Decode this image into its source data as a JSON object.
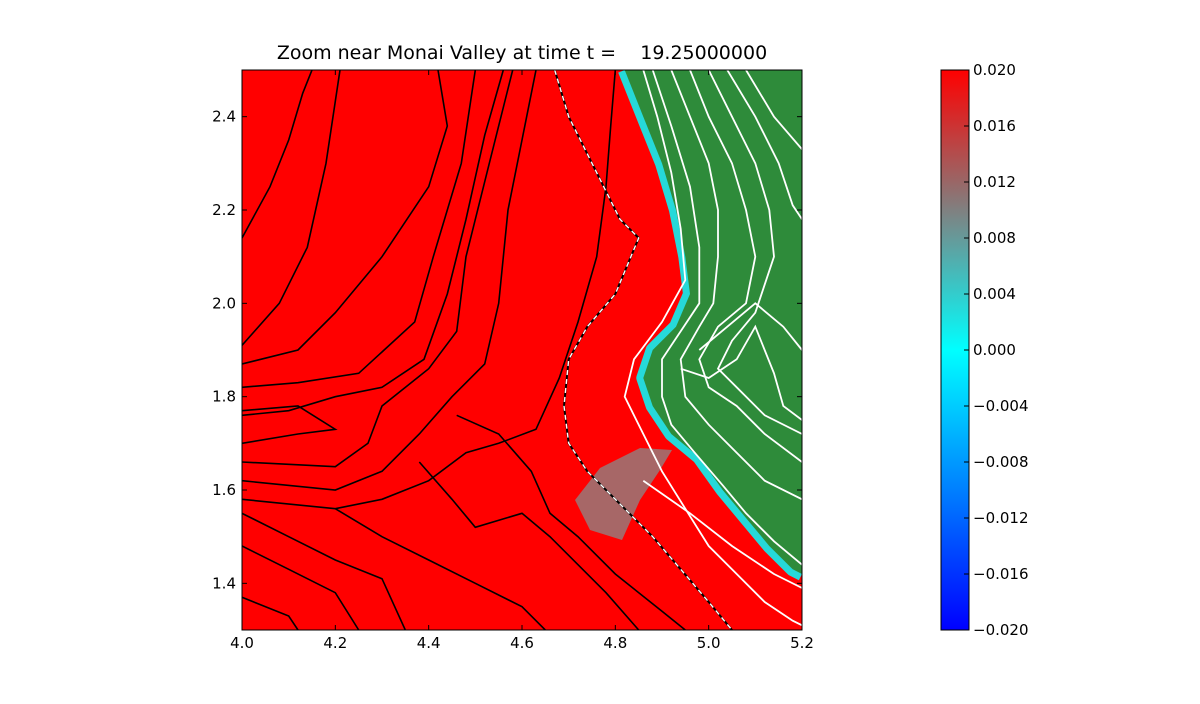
{
  "chart_data": [
    {
      "type": "heatmap",
      "title": "Zoom near Monai Valley at time t =    19.25000000",
      "xlabel": "",
      "ylabel": "",
      "xlim": [
        4.0,
        5.2
      ],
      "ylim": [
        1.3,
        2.5
      ],
      "x_ticks": [
        "4.0",
        "4.2",
        "4.4",
        "4.6",
        "4.8",
        "5.0",
        "5.2"
      ],
      "x_tick_values": [
        4.0,
        4.2,
        4.4,
        4.6,
        4.8,
        5.0,
        5.2
      ],
      "y_ticks": [
        "1.4",
        "1.6",
        "1.8",
        "2.0",
        "2.2",
        "2.4"
      ],
      "y_tick_values": [
        1.4,
        1.6,
        1.8,
        2.0,
        2.2,
        2.4
      ],
      "regions": [
        {
          "name": "water",
          "value": 0.02,
          "color": "#ff0000"
        },
        {
          "name": "land",
          "color": "#2e8b3a"
        },
        {
          "name": "shoreline-band",
          "value": 0.0,
          "color": "#00ffff"
        }
      ],
      "shoreline": [
        [
          4.82,
          2.5
        ],
        [
          4.86,
          2.4
        ],
        [
          4.9,
          2.3
        ],
        [
          4.93,
          2.2
        ],
        [
          4.95,
          2.1
        ],
        [
          4.96,
          2.02
        ],
        [
          4.93,
          1.95
        ],
        [
          4.88,
          1.9
        ],
        [
          4.86,
          1.84
        ],
        [
          4.88,
          1.78
        ],
        [
          4.92,
          1.72
        ],
        [
          4.98,
          1.67
        ],
        [
          5.03,
          1.6
        ],
        [
          5.08,
          1.54
        ],
        [
          5.13,
          1.48
        ],
        [
          5.18,
          1.43
        ],
        [
          5.2,
          1.42
        ]
      ],
      "black_contours": [
        [
          [
            4.0,
            2.14
          ],
          [
            4.06,
            2.25
          ],
          [
            4.1,
            2.35
          ],
          [
            4.13,
            2.45
          ],
          [
            4.15,
            2.5
          ]
        ],
        [
          [
            4.0,
            1.91
          ],
          [
            4.08,
            2.0
          ],
          [
            4.14,
            2.12
          ],
          [
            4.18,
            2.3
          ],
          [
            4.21,
            2.5
          ]
        ],
        [
          [
            4.0,
            1.87
          ],
          [
            4.12,
            1.9
          ],
          [
            4.2,
            1.98
          ],
          [
            4.3,
            2.1
          ],
          [
            4.4,
            2.25
          ],
          [
            4.44,
            2.38
          ],
          [
            4.42,
            2.5
          ]
        ],
        [
          [
            4.0,
            1.82
          ],
          [
            4.12,
            1.83
          ],
          [
            4.25,
            1.85
          ],
          [
            4.37,
            1.96
          ],
          [
            4.41,
            2.1
          ],
          [
            4.47,
            2.3
          ],
          [
            4.5,
            2.5
          ]
        ],
        [
          [
            4.0,
            1.76
          ],
          [
            4.1,
            1.77
          ],
          [
            4.2,
            1.8
          ],
          [
            4.3,
            1.82
          ],
          [
            4.39,
            1.88
          ],
          [
            4.44,
            2.02
          ],
          [
            4.48,
            2.18
          ],
          [
            4.52,
            2.36
          ],
          [
            4.56,
            2.5
          ]
        ],
        [
          [
            4.0,
            1.7
          ],
          [
            4.12,
            1.72
          ],
          [
            4.2,
            1.73
          ],
          [
            4.12,
            1.78
          ],
          [
            4.0,
            1.77
          ]
        ],
        [
          [
            4.0,
            1.66
          ],
          [
            4.2,
            1.65
          ],
          [
            4.27,
            1.7
          ],
          [
            4.3,
            1.78
          ],
          [
            4.4,
            1.86
          ],
          [
            4.46,
            1.94
          ],
          [
            4.48,
            2.1
          ],
          [
            4.53,
            2.3
          ],
          [
            4.58,
            2.5
          ]
        ],
        [
          [
            4.0,
            1.62
          ],
          [
            4.2,
            1.6
          ],
          [
            4.3,
            1.64
          ],
          [
            4.38,
            1.72
          ],
          [
            4.45,
            1.8
          ],
          [
            4.52,
            1.87
          ],
          [
            4.55,
            2.0
          ],
          [
            4.57,
            2.2
          ],
          [
            4.6,
            2.35
          ],
          [
            4.63,
            2.5
          ]
        ],
        [
          [
            4.0,
            1.58
          ],
          [
            4.2,
            1.56
          ],
          [
            4.3,
            1.58
          ],
          [
            4.4,
            1.62
          ],
          [
            4.48,
            1.68
          ],
          [
            4.55,
            1.7
          ],
          [
            4.63,
            1.73
          ],
          [
            4.68,
            1.84
          ],
          [
            4.72,
            1.96
          ],
          [
            4.76,
            2.1
          ],
          [
            4.78,
            2.25
          ],
          [
            4.79,
            2.38
          ],
          [
            4.8,
            2.5
          ]
        ],
        [
          [
            4.0,
            1.55
          ],
          [
            4.1,
            1.5
          ],
          [
            4.2,
            1.45
          ],
          [
            4.3,
            1.41
          ],
          [
            4.35,
            1.3
          ]
        ],
        [
          [
            4.0,
            1.48
          ],
          [
            4.1,
            1.43
          ],
          [
            4.2,
            1.38
          ],
          [
            4.25,
            1.3
          ]
        ],
        [
          [
            4.0,
            1.37
          ],
          [
            4.1,
            1.33
          ],
          [
            4.12,
            1.3
          ]
        ],
        [
          [
            4.2,
            1.56
          ],
          [
            4.3,
            1.5
          ],
          [
            4.4,
            1.45
          ],
          [
            4.5,
            1.4
          ],
          [
            4.6,
            1.35
          ],
          [
            4.65,
            1.3
          ]
        ],
        [
          [
            4.38,
            1.66
          ],
          [
            4.45,
            1.58
          ],
          [
            4.5,
            1.52
          ],
          [
            4.6,
            1.55
          ],
          [
            4.66,
            1.5
          ],
          [
            4.72,
            1.44
          ],
          [
            4.78,
            1.38
          ],
          [
            4.85,
            1.3
          ]
        ],
        [
          [
            4.46,
            1.76
          ],
          [
            4.55,
            1.72
          ],
          [
            4.62,
            1.64
          ],
          [
            4.66,
            1.55
          ],
          [
            4.72,
            1.5
          ],
          [
            4.8,
            1.42
          ],
          [
            4.9,
            1.34
          ],
          [
            4.95,
            1.3
          ]
        ]
      ],
      "dashed_contour": [
        [
          4.67,
          2.5
        ],
        [
          4.7,
          2.4
        ],
        [
          4.76,
          2.28
        ],
        [
          4.81,
          2.18
        ],
        [
          4.85,
          2.14
        ],
        [
          4.8,
          2.02
        ],
        [
          4.74,
          1.95
        ],
        [
          4.7,
          1.88
        ],
        [
          4.69,
          1.78
        ],
        [
          4.7,
          1.7
        ],
        [
          4.74,
          1.64
        ],
        [
          4.8,
          1.58
        ],
        [
          4.88,
          1.5
        ],
        [
          4.94,
          1.43
        ],
        [
          5.0,
          1.36
        ],
        [
          5.05,
          1.3
        ]
      ],
      "white_contours": [
        [
          [
            4.86,
            2.5
          ],
          [
            4.89,
            2.4
          ],
          [
            4.92,
            2.28
          ],
          [
            4.94,
            2.16
          ],
          [
            4.95,
            2.05
          ],
          [
            4.9,
            1.96
          ],
          [
            4.84,
            1.88
          ],
          [
            4.82,
            1.8
          ],
          [
            4.86,
            1.72
          ],
          [
            4.9,
            1.64
          ],
          [
            4.95,
            1.56
          ],
          [
            5.0,
            1.48
          ],
          [
            5.06,
            1.42
          ],
          [
            5.12,
            1.36
          ],
          [
            5.18,
            1.32
          ],
          [
            5.2,
            1.31
          ]
        ],
        [
          [
            4.88,
            2.5
          ],
          [
            4.92,
            2.38
          ],
          [
            4.96,
            2.25
          ],
          [
            4.98,
            2.12
          ],
          [
            4.98,
            2.0
          ],
          [
            4.94,
            1.94
          ],
          [
            4.9,
            1.88
          ],
          [
            4.9,
            1.8
          ],
          [
            4.92,
            1.74
          ],
          [
            4.97,
            1.68
          ],
          [
            5.03,
            1.61
          ],
          [
            5.08,
            1.55
          ],
          [
            5.14,
            1.49
          ],
          [
            5.2,
            1.44
          ]
        ],
        [
          [
            4.92,
            2.5
          ],
          [
            4.96,
            2.4
          ],
          [
            5.0,
            2.3
          ],
          [
            5.02,
            2.2
          ],
          [
            5.02,
            2.1
          ],
          [
            5.01,
            2.0
          ],
          [
            4.98,
            1.95
          ],
          [
            4.94,
            1.88
          ],
          [
            4.95,
            1.8
          ],
          [
            5.0,
            1.74
          ],
          [
            5.06,
            1.68
          ],
          [
            5.12,
            1.62
          ],
          [
            5.2,
            1.58
          ]
        ],
        [
          [
            4.96,
            2.5
          ],
          [
            5.0,
            2.4
          ],
          [
            5.05,
            2.3
          ],
          [
            5.08,
            2.2
          ],
          [
            5.1,
            2.1
          ],
          [
            5.08,
            2.0
          ],
          [
            5.02,
            1.95
          ],
          [
            4.98,
            1.88
          ],
          [
            5.0,
            1.82
          ],
          [
            5.06,
            1.78
          ],
          [
            5.12,
            1.72
          ],
          [
            5.2,
            1.66
          ]
        ],
        [
          [
            5.0,
            2.5
          ],
          [
            5.05,
            2.4
          ],
          [
            5.1,
            2.3
          ],
          [
            5.13,
            2.2
          ],
          [
            5.14,
            2.1
          ],
          [
            5.1,
            1.98
          ],
          [
            5.05,
            1.92
          ],
          [
            5.02,
            1.86
          ],
          [
            5.06,
            1.82
          ],
          [
            5.12,
            1.76
          ],
          [
            5.2,
            1.72
          ]
        ],
        [
          [
            5.04,
            2.5
          ],
          [
            5.1,
            2.4
          ],
          [
            5.15,
            2.3
          ],
          [
            5.18,
            2.21
          ],
          [
            5.2,
            2.18
          ]
        ],
        [
          [
            5.08,
            2.5
          ],
          [
            5.14,
            2.4
          ],
          [
            5.2,
            2.33
          ]
        ],
        [
          [
            4.94,
            1.86
          ],
          [
            5.0,
            1.84
          ],
          [
            5.06,
            1.88
          ],
          [
            5.1,
            1.95
          ],
          [
            5.14,
            1.85
          ],
          [
            5.16,
            1.78
          ],
          [
            5.2,
            1.75
          ]
        ],
        [
          [
            4.98,
            1.9
          ],
          [
            5.04,
            1.95
          ],
          [
            5.1,
            2.0
          ],
          [
            5.16,
            1.95
          ],
          [
            5.2,
            1.9
          ]
        ],
        [
          [
            4.86,
            1.62
          ],
          [
            4.96,
            1.55
          ],
          [
            5.05,
            1.48
          ],
          [
            5.14,
            1.42
          ],
          [
            5.2,
            1.39
          ]
        ]
      ]
    },
    {
      "type": "colorbar",
      "range": [
        -0.02,
        0.02
      ],
      "ticks": [
        "0.020",
        "0.016",
        "0.012",
        "0.008",
        "0.004",
        "0.000",
        "−0.004",
        "−0.008",
        "−0.012",
        "−0.016",
        "−0.020"
      ],
      "tick_values": [
        0.02,
        0.016,
        0.012,
        0.008,
        0.004,
        0.0,
        -0.004,
        -0.008,
        -0.012,
        -0.016,
        -0.02
      ],
      "colors": [
        "#0000ff",
        "#00ffff",
        "#808080",
        "#ff0000"
      ]
    }
  ]
}
